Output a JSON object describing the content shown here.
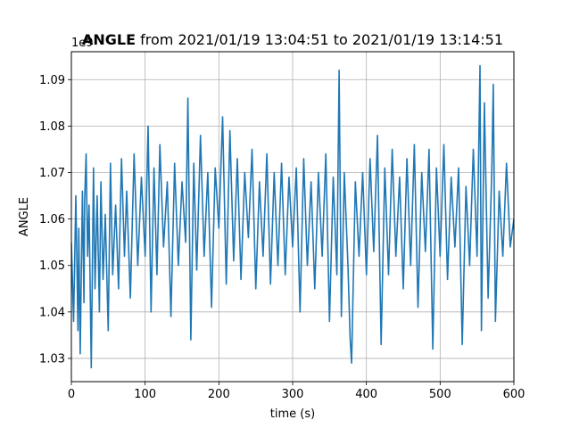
{
  "chart_data": {
    "type": "line",
    "title_bold": "ANGLE",
    "title_rest": " from 2021/01/19 13:04:51 to 2021/01/19 13:14:51",
    "xlabel": "time (s)",
    "ylabel": "ANGLE",
    "offset_text": "1e9",
    "xlim": [
      0,
      600
    ],
    "ylim": [
      1.025,
      1.096
    ],
    "xticks": [
      0,
      100,
      200,
      300,
      400,
      500,
      600
    ],
    "xtick_labels": [
      "0",
      "100",
      "200",
      "300",
      "400",
      "500",
      "600"
    ],
    "yticks": [
      1.03,
      1.04,
      1.05,
      1.06,
      1.07,
      1.08,
      1.09
    ],
    "ytick_labels": [
      "1.03",
      "1.04",
      "1.05",
      "1.06",
      "1.07",
      "1.08",
      "1.09"
    ],
    "grid": true,
    "line_color": "#1f77b4",
    "series": [
      {
        "x": [
          0,
          3,
          6,
          9,
          10,
          12,
          15,
          17,
          18,
          20,
          22,
          24,
          27,
          30,
          32,
          35,
          38,
          40,
          43,
          46,
          50,
          53,
          56,
          60,
          64,
          68,
          72,
          75,
          80,
          85,
          90,
          95,
          100,
          104,
          108,
          112,
          116,
          120,
          125,
          130,
          135,
          140,
          145,
          150,
          155,
          158,
          162,
          166,
          170,
          175,
          180,
          185,
          190,
          195,
          200,
          205,
          210,
          215,
          220,
          225,
          230,
          235,
          240,
          245,
          250,
          255,
          260,
          265,
          270,
          275,
          280,
          285,
          290,
          295,
          300,
          305,
          310,
          315,
          320,
          325,
          330,
          335,
          340,
          345,
          350,
          355,
          360,
          363,
          366,
          370,
          375,
          378,
          380,
          385,
          390,
          395,
          400,
          405,
          410,
          415,
          420,
          425,
          430,
          435,
          440,
          445,
          450,
          455,
          460,
          465,
          470,
          475,
          480,
          485,
          490,
          495,
          500,
          505,
          510,
          515,
          520,
          525,
          530,
          535,
          540,
          545,
          550,
          554,
          556,
          560,
          565,
          570,
          572,
          575,
          580,
          585,
          590,
          595,
          600
        ],
        "y": [
          1.055,
          1.038,
          1.065,
          1.036,
          1.058,
          1.031,
          1.066,
          1.042,
          1.064,
          1.074,
          1.052,
          1.063,
          1.028,
          1.071,
          1.045,
          1.065,
          1.04,
          1.068,
          1.047,
          1.061,
          1.036,
          1.072,
          1.048,
          1.063,
          1.045,
          1.073,
          1.052,
          1.066,
          1.043,
          1.074,
          1.05,
          1.069,
          1.052,
          1.08,
          1.04,
          1.071,
          1.048,
          1.076,
          1.054,
          1.068,
          1.039,
          1.072,
          1.05,
          1.068,
          1.055,
          1.086,
          1.034,
          1.072,
          1.049,
          1.078,
          1.052,
          1.07,
          1.041,
          1.071,
          1.058,
          1.082,
          1.046,
          1.079,
          1.051,
          1.073,
          1.047,
          1.07,
          1.056,
          1.075,
          1.045,
          1.068,
          1.052,
          1.074,
          1.046,
          1.07,
          1.05,
          1.072,
          1.048,
          1.069,
          1.054,
          1.071,
          1.04,
          1.073,
          1.05,
          1.068,
          1.045,
          1.07,
          1.052,
          1.074,
          1.038,
          1.069,
          1.048,
          1.092,
          1.039,
          1.07,
          1.05,
          1.034,
          1.029,
          1.068,
          1.052,
          1.07,
          1.048,
          1.073,
          1.053,
          1.078,
          1.033,
          1.071,
          1.048,
          1.075,
          1.052,
          1.069,
          1.045,
          1.073,
          1.05,
          1.076,
          1.041,
          1.07,
          1.053,
          1.075,
          1.032,
          1.071,
          1.052,
          1.076,
          1.047,
          1.069,
          1.054,
          1.071,
          1.033,
          1.067,
          1.05,
          1.075,
          1.052,
          1.093,
          1.036,
          1.085,
          1.043,
          1.07,
          1.089,
          1.038,
          1.066,
          1.052,
          1.072,
          1.054,
          1.06
        ]
      }
    ]
  }
}
